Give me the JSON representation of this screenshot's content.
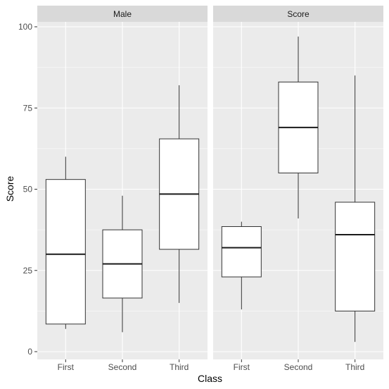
{
  "chart_data": {
    "type": "boxplot",
    "xlabel": "Class",
    "ylabel": "Score",
    "ylim": [
      0,
      100
    ],
    "yticks": [
      0,
      25,
      50,
      75,
      100
    ],
    "categories": [
      "First",
      "Second",
      "Third"
    ],
    "grid": true,
    "facets": [
      {
        "label": "Male",
        "boxes": [
          {
            "category": "First",
            "whisker_low": 7,
            "q1": 8.5,
            "median": 30,
            "q3": 53,
            "whisker_high": 60
          },
          {
            "category": "Second",
            "whisker_low": 6,
            "q1": 16.5,
            "median": 27,
            "q3": 37.5,
            "whisker_high": 48
          },
          {
            "category": "Third",
            "whisker_low": 15,
            "q1": 31.5,
            "median": 48.5,
            "q3": 65.5,
            "whisker_high": 82
          }
        ]
      },
      {
        "label": "Score",
        "boxes": [
          {
            "category": "First",
            "whisker_low": 13,
            "q1": 23,
            "median": 32,
            "q3": 38.5,
            "whisker_high": 40
          },
          {
            "category": "Second",
            "whisker_low": 41,
            "q1": 55,
            "median": 69,
            "q3": 83,
            "whisker_high": 97
          },
          {
            "category": "Third",
            "whisker_low": 3,
            "q1": 12.5,
            "median": 36,
            "q3": 46,
            "whisker_high": 85
          }
        ]
      }
    ]
  },
  "colors": {
    "panel_background": "#ebebeb",
    "strip_background": "#d9d9d9",
    "grid_major": "#ffffff",
    "box_fill": "#ffffff",
    "box_line": "#333333"
  }
}
